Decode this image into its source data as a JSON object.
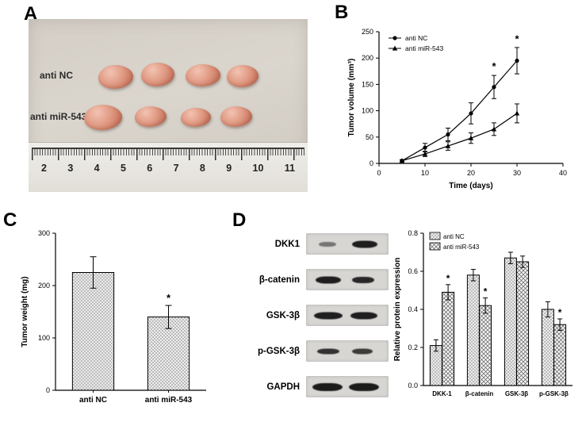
{
  "panels": {
    "a": "A",
    "b": "B",
    "c": "C",
    "d": "D"
  },
  "panel_a": {
    "label_top": "anti NC",
    "label_bottom": "anti miR-543",
    "ruler_numbers": [
      "2",
      "3",
      "4",
      "5",
      "6",
      "7",
      "8",
      "9",
      "10",
      "11"
    ]
  },
  "blots": {
    "rows": [
      {
        "label": "DKK1"
      },
      {
        "label": "β-catenin"
      },
      {
        "label": "GSK-3β"
      },
      {
        "label": "p-GSK-3β"
      },
      {
        "label": "GAPDH"
      }
    ]
  },
  "chart_data": [
    {
      "id": "tumor-volume",
      "panel": "B",
      "type": "line",
      "xlabel": "Time (days)",
      "ylabel": "Tumor volume (mm³)",
      "xlim": [
        0,
        40
      ],
      "ylim": [
        0,
        250
      ],
      "xticks": [
        0,
        10,
        20,
        30,
        40
      ],
      "yticks": [
        0,
        50,
        100,
        150,
        200,
        250
      ],
      "legend_position": "top-left",
      "grid": false,
      "series": [
        {
          "name": "anti NC",
          "marker": "circle",
          "x": [
            5,
            10,
            15,
            20,
            25,
            30
          ],
          "y": [
            5,
            30,
            55,
            95,
            145,
            195
          ],
          "err": [
            2,
            8,
            12,
            20,
            22,
            25
          ]
        },
        {
          "name": "anti miR-543",
          "marker": "triangle",
          "x": [
            5,
            10,
            15,
            20,
            25,
            30
          ],
          "y": [
            5,
            18,
            33,
            48,
            65,
            95
          ],
          "err": [
            2,
            5,
            8,
            10,
            12,
            18
          ]
        }
      ],
      "annotations": [
        {
          "text": "*",
          "x": 25,
          "y": 178
        },
        {
          "text": "*",
          "x": 30,
          "y": 230
        }
      ]
    },
    {
      "id": "tumor-weight",
      "panel": "C",
      "type": "bar",
      "ylabel": "Tumor weight (mg)",
      "ylim": [
        0,
        300
      ],
      "yticks": [
        0,
        100,
        200,
        300
      ],
      "categories": [
        "anti NC",
        "anti miR-543"
      ],
      "values": [
        225,
        140
      ],
      "errors": [
        30,
        22
      ],
      "pattern": "stipple",
      "annotations": [
        {
          "text": "*",
          "category": 1
        }
      ]
    },
    {
      "id": "protein-expression",
      "panel": "D",
      "type": "grouped-bar",
      "ylabel": "Relative protein expression",
      "ylim": [
        0,
        0.8
      ],
      "yticks": [
        0.0,
        0.2,
        0.4,
        0.6,
        0.8
      ],
      "categories": [
        "DKK-1",
        "β-catenin",
        "GSK-3β",
        "p-GSK-3β"
      ],
      "legend_position": "top-left",
      "series": [
        {
          "name": "anti NC",
          "pattern": "stipple",
          "values": [
            0.21,
            0.58,
            0.67,
            0.4
          ],
          "errors": [
            0.03,
            0.03,
            0.03,
            0.04
          ]
        },
        {
          "name": "anti miR-543",
          "pattern": "cross",
          "values": [
            0.49,
            0.42,
            0.65,
            0.32
          ],
          "errors": [
            0.04,
            0.04,
            0.03,
            0.03
          ]
        }
      ],
      "annotations": [
        {
          "text": "*",
          "series": 1,
          "category": 0
        },
        {
          "text": "*",
          "series": 1,
          "category": 1
        },
        {
          "text": "*",
          "series": 1,
          "category": 3
        }
      ]
    }
  ]
}
